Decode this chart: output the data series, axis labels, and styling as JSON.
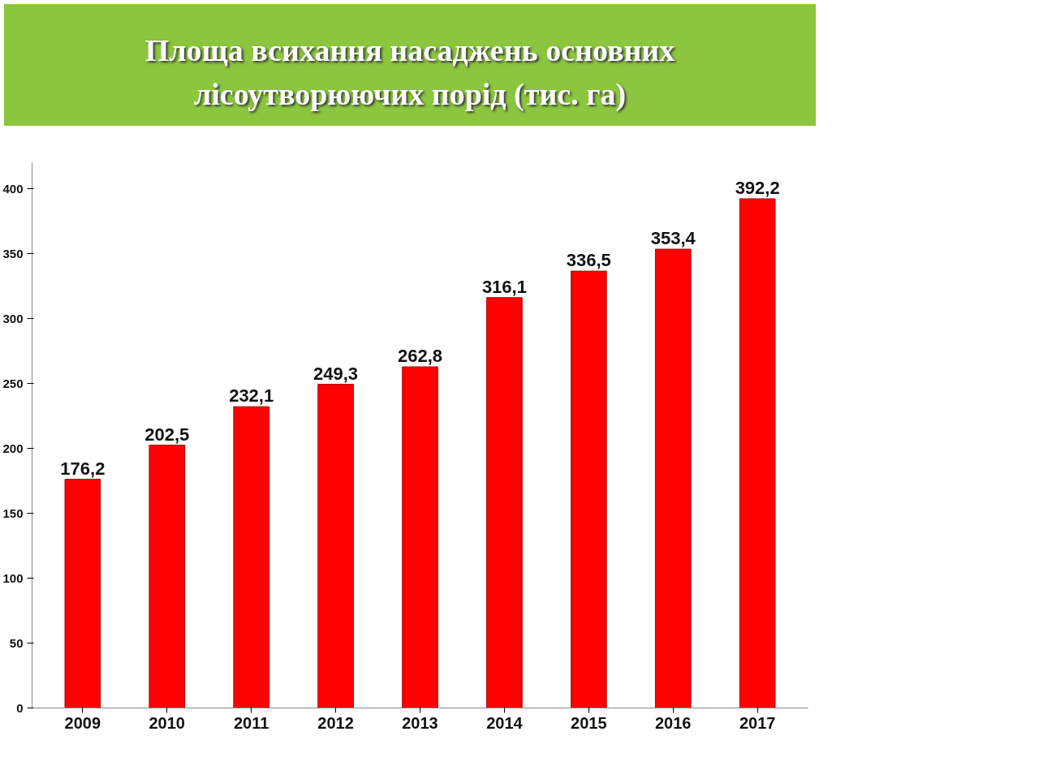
{
  "chart_data": {
    "type": "bar",
    "title": "Площа всихання насаджень основних лісоутворюючих порід (тис. га)",
    "categories": [
      "2009",
      "2010",
      "2011",
      "2012",
      "2013",
      "2014",
      "2015",
      "2016",
      "2017"
    ],
    "values": [
      176.2,
      202.5,
      232.1,
      249.3,
      262.8,
      316.1,
      336.5,
      353.4,
      392.2
    ],
    "value_labels": [
      "176,2",
      "202,5",
      "232,1",
      "249,3",
      "262,8",
      "316,1",
      "336,5",
      "353,4",
      "392,2"
    ],
    "color": "#ff0000",
    "ylim": [
      0,
      420
    ],
    "yticks": [
      0,
      50,
      100,
      150,
      200,
      250,
      300,
      350,
      400
    ],
    "grid": false
  }
}
